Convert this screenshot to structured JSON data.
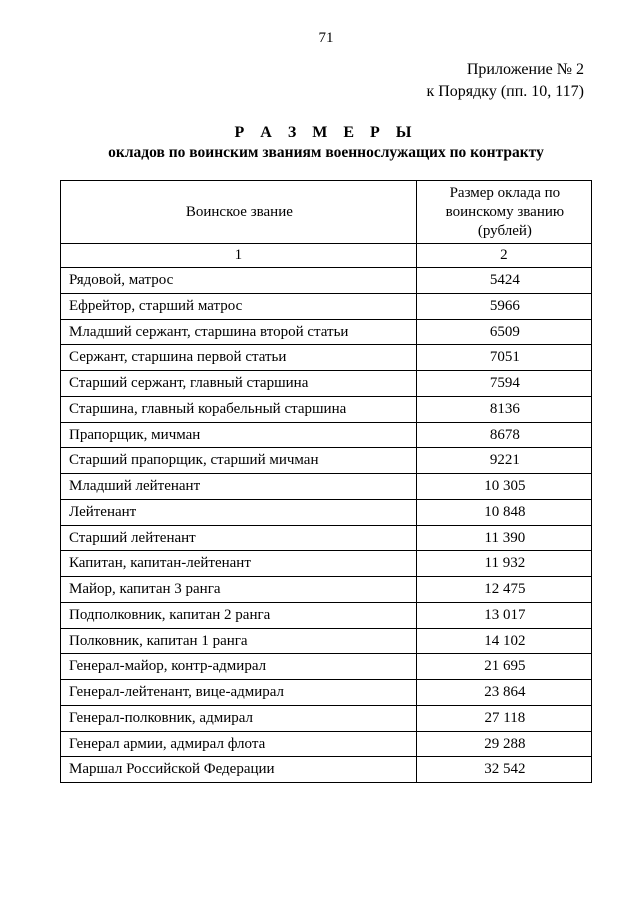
{
  "page_number": "71",
  "appendix": {
    "line1": "Приложение  № 2",
    "line2": "к Порядку (пп. 10, 117)"
  },
  "title": {
    "main": "Р А З М Е Р Ы",
    "sub": "окладов по воинским званиям военнослужащих по контракту"
  },
  "table": {
    "type": "table",
    "columns": [
      {
        "label": "Воинское звание",
        "width_pct": 67,
        "align": "left"
      },
      {
        "label": "Размер оклада по воинскому званию (рублей)",
        "width_pct": 33,
        "align": "center"
      }
    ],
    "column_numbers": [
      "1",
      "2"
    ],
    "rows": [
      [
        "Рядовой, матрос",
        "5424"
      ],
      [
        "Ефрейтор, старший матрос",
        "5966"
      ],
      [
        "Младший сержант, старшина второй статьи",
        "6509"
      ],
      [
        "Сержант, старшина первой статьи",
        "7051"
      ],
      [
        "Старший сержант, главный старшина",
        "7594"
      ],
      [
        "Старшина, главный корабельный старшина",
        "8136"
      ],
      [
        "Прапорщик, мичман",
        "8678"
      ],
      [
        "Старший прапорщик, старший мичман",
        "9221"
      ],
      [
        "Младший лейтенант",
        "10 305"
      ],
      [
        "Лейтенант",
        "10 848"
      ],
      [
        "Старший лейтенант",
        "11 390"
      ],
      [
        "Капитан, капитан-лейтенант",
        "11 932"
      ],
      [
        "Майор, капитан 3 ранга",
        "12 475"
      ],
      [
        "Подполковник, капитан 2 ранга",
        "13 017"
      ],
      [
        "Полковник, капитан 1 ранга",
        "14 102"
      ],
      [
        "Генерал-майор, контр-адмирал",
        "21 695"
      ],
      [
        "Генерал-лейтенант, вице-адмирал",
        "23 864"
      ],
      [
        "Генерал-полковник, адмирал",
        "27 118"
      ],
      [
        "Генерал армии, адмирал флота",
        "29 288"
      ],
      [
        "Маршал Российской Федерации",
        "32 542"
      ]
    ],
    "border_color": "#000000",
    "background_color": "#ffffff",
    "font_size_pt": 11,
    "header_font_weight": "normal"
  }
}
